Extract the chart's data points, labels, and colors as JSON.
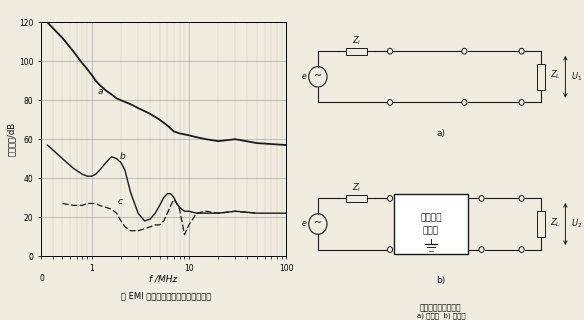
{
  "title_left": "加 EMI 滤波器前、后干扰波形的比较",
  "title_right_main": "测量插入损耗的电路",
  "title_right_sub": "a) 插入前  b) 插入后",
  "ylabel": "传导噪声/dB",
  "xlabel": "f /MHz",
  "yticks": [
    0,
    20,
    40,
    60,
    80,
    100,
    120
  ],
  "bg_color": "#f0ece0",
  "line_color": "#1a1a1a",
  "grid_color": "#999999",
  "curve_a_x": [
    0.35,
    0.5,
    0.65,
    0.8,
    0.9,
    1.0,
    1.1,
    1.2,
    1.4,
    1.6,
    1.8,
    2.0,
    2.5,
    3.0,
    4.0,
    5.0,
    6.0,
    7.0,
    8.0,
    10.0,
    12.0,
    15.0,
    20.0,
    30.0,
    50.0,
    100.0
  ],
  "curve_a_y": [
    120,
    112,
    105,
    99,
    96,
    93,
    90,
    88,
    85,
    83,
    81,
    80,
    78,
    76,
    73,
    70,
    67,
    64,
    63,
    62,
    61,
    60,
    59,
    60,
    58,
    57
  ],
  "curve_b_x": [
    0.35,
    0.5,
    0.65,
    0.8,
    0.9,
    1.0,
    1.1,
    1.2,
    1.4,
    1.6,
    1.8,
    2.0,
    2.2,
    2.5,
    3.0,
    3.5,
    4.0,
    4.5,
    5.0,
    5.5,
    6.0,
    6.5,
    7.0,
    7.5,
    8.0,
    9.0,
    10.0,
    12.0,
    15.0,
    20.0,
    30.0,
    50.0,
    100.0
  ],
  "curve_b_y": [
    57,
    50,
    45,
    42,
    41,
    41,
    42,
    44,
    48,
    51,
    50,
    48,
    44,
    33,
    22,
    18,
    19,
    22,
    26,
    30,
    32,
    32,
    30,
    27,
    25,
    23,
    23,
    22,
    22,
    22,
    23,
    22,
    22
  ],
  "curve_c_x": [
    0.5,
    0.65,
    0.8,
    0.9,
    1.0,
    1.1,
    1.2,
    1.4,
    1.6,
    1.8,
    2.0,
    2.2,
    2.5,
    3.0,
    3.5,
    4.0,
    4.5,
    5.0,
    5.5,
    6.0,
    6.5,
    7.0,
    7.5,
    8.0,
    9.0,
    10.0,
    12.0,
    15.0,
    20.0,
    30.0,
    50.0
  ],
  "curve_c_y": [
    27,
    26,
    26,
    27,
    27,
    27,
    26,
    25,
    24,
    22,
    18,
    15,
    13,
    13,
    14,
    15,
    16,
    16,
    18,
    22,
    26,
    29,
    27,
    24,
    11,
    16,
    22,
    23,
    22,
    23,
    22
  ]
}
